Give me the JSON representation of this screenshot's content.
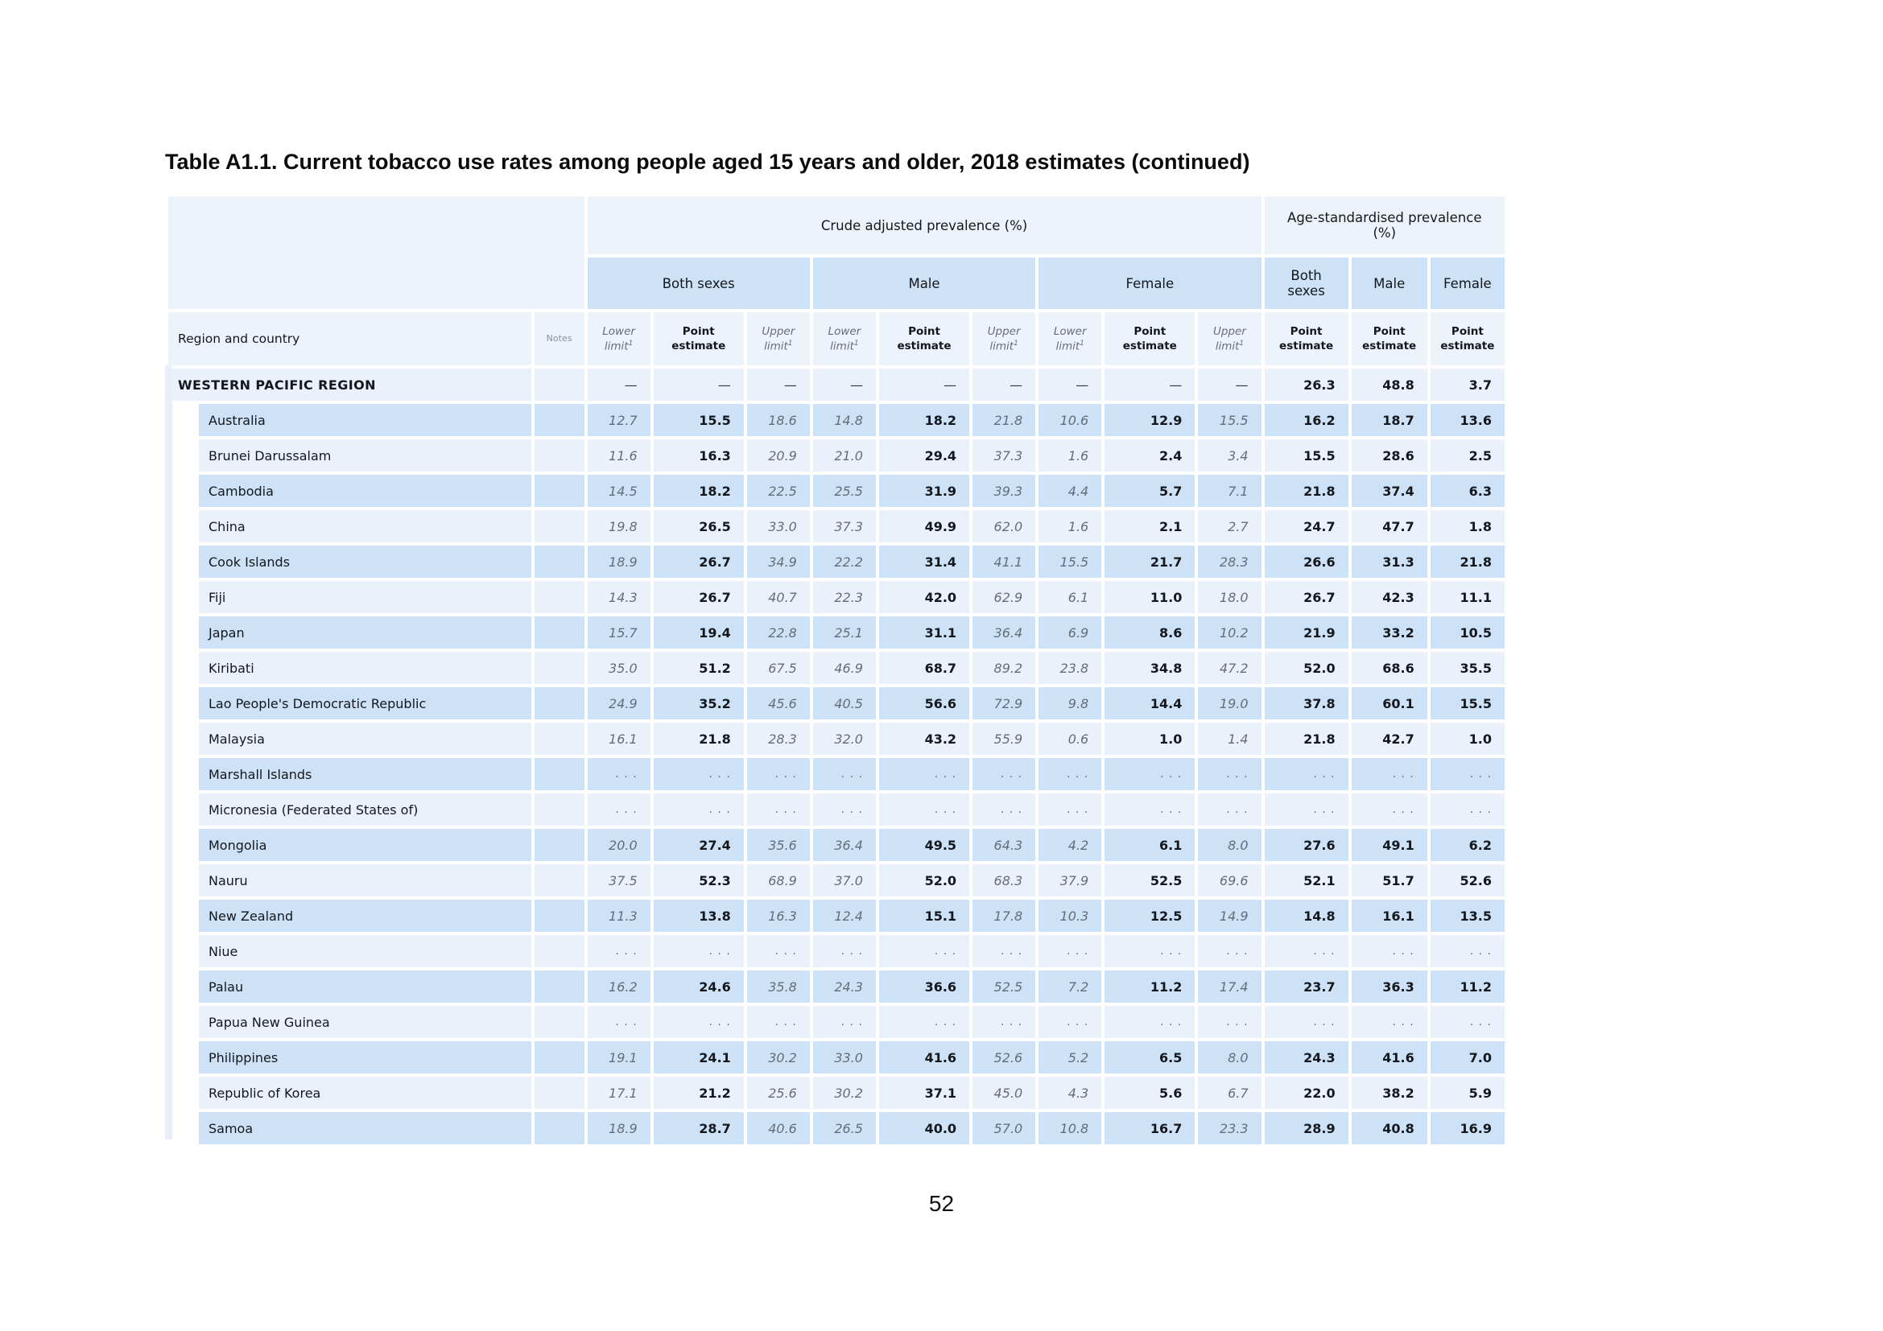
{
  "document": {
    "title": "Table A1.1. Current tobacco use rates among people aged 15 years and older, 2018 estimates (continued)",
    "page_number": "52"
  },
  "table": {
    "header": {
      "group_crude": "Crude adjusted prevalence (%)",
      "group_age_std": "Age-standardised prevalence (%)",
      "sex_groups": [
        "Both sexes",
        "Male",
        "Female"
      ],
      "as_columns": [
        "Both sexes",
        "Male",
        "Female"
      ],
      "region_col": "Region and country",
      "notes_col": "Notes",
      "lower_label": "Lower limit",
      "upper_label": "Upper limit",
      "limit_sup": "1",
      "point_label": "Point estimate"
    },
    "rows": [
      {
        "label": "WESTERN PACIFIC REGION",
        "type": "region",
        "values": [
          "—",
          "—",
          "—",
          "—",
          "—",
          "—",
          "—",
          "—",
          "—",
          "26.3",
          "48.8",
          "3.7"
        ]
      },
      {
        "label": "Australia",
        "type": "country",
        "values": [
          "12.7",
          "15.5",
          "18.6",
          "14.8",
          "18.2",
          "21.8",
          "10.6",
          "12.9",
          "15.5",
          "16.2",
          "18.7",
          "13.6"
        ]
      },
      {
        "label": "Brunei Darussalam",
        "type": "country",
        "values": [
          "11.6",
          "16.3",
          "20.9",
          "21.0",
          "29.4",
          "37.3",
          "1.6",
          "2.4",
          "3.4",
          "15.5",
          "28.6",
          "2.5"
        ]
      },
      {
        "label": "Cambodia",
        "type": "country",
        "values": [
          "14.5",
          "18.2",
          "22.5",
          "25.5",
          "31.9",
          "39.3",
          "4.4",
          "5.7",
          "7.1",
          "21.8",
          "37.4",
          "6.3"
        ]
      },
      {
        "label": "China",
        "type": "country",
        "values": [
          "19.8",
          "26.5",
          "33.0",
          "37.3",
          "49.9",
          "62.0",
          "1.6",
          "2.1",
          "2.7",
          "24.7",
          "47.7",
          "1.8"
        ]
      },
      {
        "label": "Cook Islands",
        "type": "country",
        "values": [
          "18.9",
          "26.7",
          "34.9",
          "22.2",
          "31.4",
          "41.1",
          "15.5",
          "21.7",
          "28.3",
          "26.6",
          "31.3",
          "21.8"
        ]
      },
      {
        "label": "Fiji",
        "type": "country",
        "values": [
          "14.3",
          "26.7",
          "40.7",
          "22.3",
          "42.0",
          "62.9",
          "6.1",
          "11.0",
          "18.0",
          "26.7",
          "42.3",
          "11.1"
        ]
      },
      {
        "label": "Japan",
        "type": "country",
        "values": [
          "15.7",
          "19.4",
          "22.8",
          "25.1",
          "31.1",
          "36.4",
          "6.9",
          "8.6",
          "10.2",
          "21.9",
          "33.2",
          "10.5"
        ]
      },
      {
        "label": "Kiribati",
        "type": "country",
        "values": [
          "35.0",
          "51.2",
          "67.5",
          "46.9",
          "68.7",
          "89.2",
          "23.8",
          "34.8",
          "47.2",
          "52.0",
          "68.6",
          "35.5"
        ]
      },
      {
        "label": "Lao People's Democratic Republic",
        "type": "country",
        "values": [
          "24.9",
          "35.2",
          "45.6",
          "40.5",
          "56.6",
          "72.9",
          "9.8",
          "14.4",
          "19.0",
          "37.8",
          "60.1",
          "15.5"
        ]
      },
      {
        "label": "Malaysia",
        "type": "country",
        "values": [
          "16.1",
          "21.8",
          "28.3",
          "32.0",
          "43.2",
          "55.9",
          "0.6",
          "1.0",
          "1.4",
          "21.8",
          "42.7",
          "1.0"
        ]
      },
      {
        "label": "Marshall Islands",
        "type": "country",
        "values": [
          ". . .",
          ". . .",
          ". . .",
          ". . .",
          ". . .",
          ". . .",
          ". . .",
          ". . .",
          ". . .",
          ". . .",
          ". . .",
          ". . ."
        ]
      },
      {
        "label": "Micronesia (Federated States of)",
        "type": "country",
        "values": [
          ". . .",
          ". . .",
          ". . .",
          ". . .",
          ". . .",
          ". . .",
          ". . .",
          ". . .",
          ". . .",
          ". . .",
          ". . .",
          ". . ."
        ]
      },
      {
        "label": "Mongolia",
        "type": "country",
        "values": [
          "20.0",
          "27.4",
          "35.6",
          "36.4",
          "49.5",
          "64.3",
          "4.2",
          "6.1",
          "8.0",
          "27.6",
          "49.1",
          "6.2"
        ]
      },
      {
        "label": "Nauru",
        "type": "country",
        "values": [
          "37.5",
          "52.3",
          "68.9",
          "37.0",
          "52.0",
          "68.3",
          "37.9",
          "52.5",
          "69.6",
          "52.1",
          "51.7",
          "52.6"
        ]
      },
      {
        "label": "New Zealand",
        "type": "country",
        "values": [
          "11.3",
          "13.8",
          "16.3",
          "12.4",
          "15.1",
          "17.8",
          "10.3",
          "12.5",
          "14.9",
          "14.8",
          "16.1",
          "13.5"
        ]
      },
      {
        "label": "Niue",
        "type": "country",
        "values": [
          ". . .",
          ". . .",
          ". . .",
          ". . .",
          ". . .",
          ". . .",
          ". . .",
          ". . .",
          ". . .",
          ". . .",
          ". . .",
          ". . ."
        ]
      },
      {
        "label": "Palau",
        "type": "country",
        "values": [
          "16.2",
          "24.6",
          "35.8",
          "24.3",
          "36.6",
          "52.5",
          "7.2",
          "11.2",
          "17.4",
          "23.7",
          "36.3",
          "11.2"
        ]
      },
      {
        "label": "Papua New Guinea",
        "type": "country",
        "values": [
          ". . .",
          ". . .",
          ". . .",
          ". . .",
          ". . .",
          ". . .",
          ". . .",
          ". . .",
          ". . .",
          ". . .",
          ". . .",
          ". . ."
        ]
      },
      {
        "label": "Philippines",
        "type": "country",
        "values": [
          "19.1",
          "24.1",
          "30.2",
          "33.0",
          "41.6",
          "52.6",
          "5.2",
          "6.5",
          "8.0",
          "24.3",
          "41.6",
          "7.0"
        ]
      },
      {
        "label": "Republic of Korea",
        "type": "country",
        "values": [
          "17.1",
          "21.2",
          "25.6",
          "30.2",
          "37.1",
          "45.0",
          "4.3",
          "5.6",
          "6.7",
          "22.0",
          "38.2",
          "5.9"
        ]
      },
      {
        "label": "Samoa",
        "type": "country",
        "values": [
          "18.9",
          "28.7",
          "40.6",
          "26.5",
          "40.0",
          "57.0",
          "10.8",
          "16.7",
          "23.3",
          "28.9",
          "40.8",
          "16.9"
        ]
      }
    ]
  }
}
